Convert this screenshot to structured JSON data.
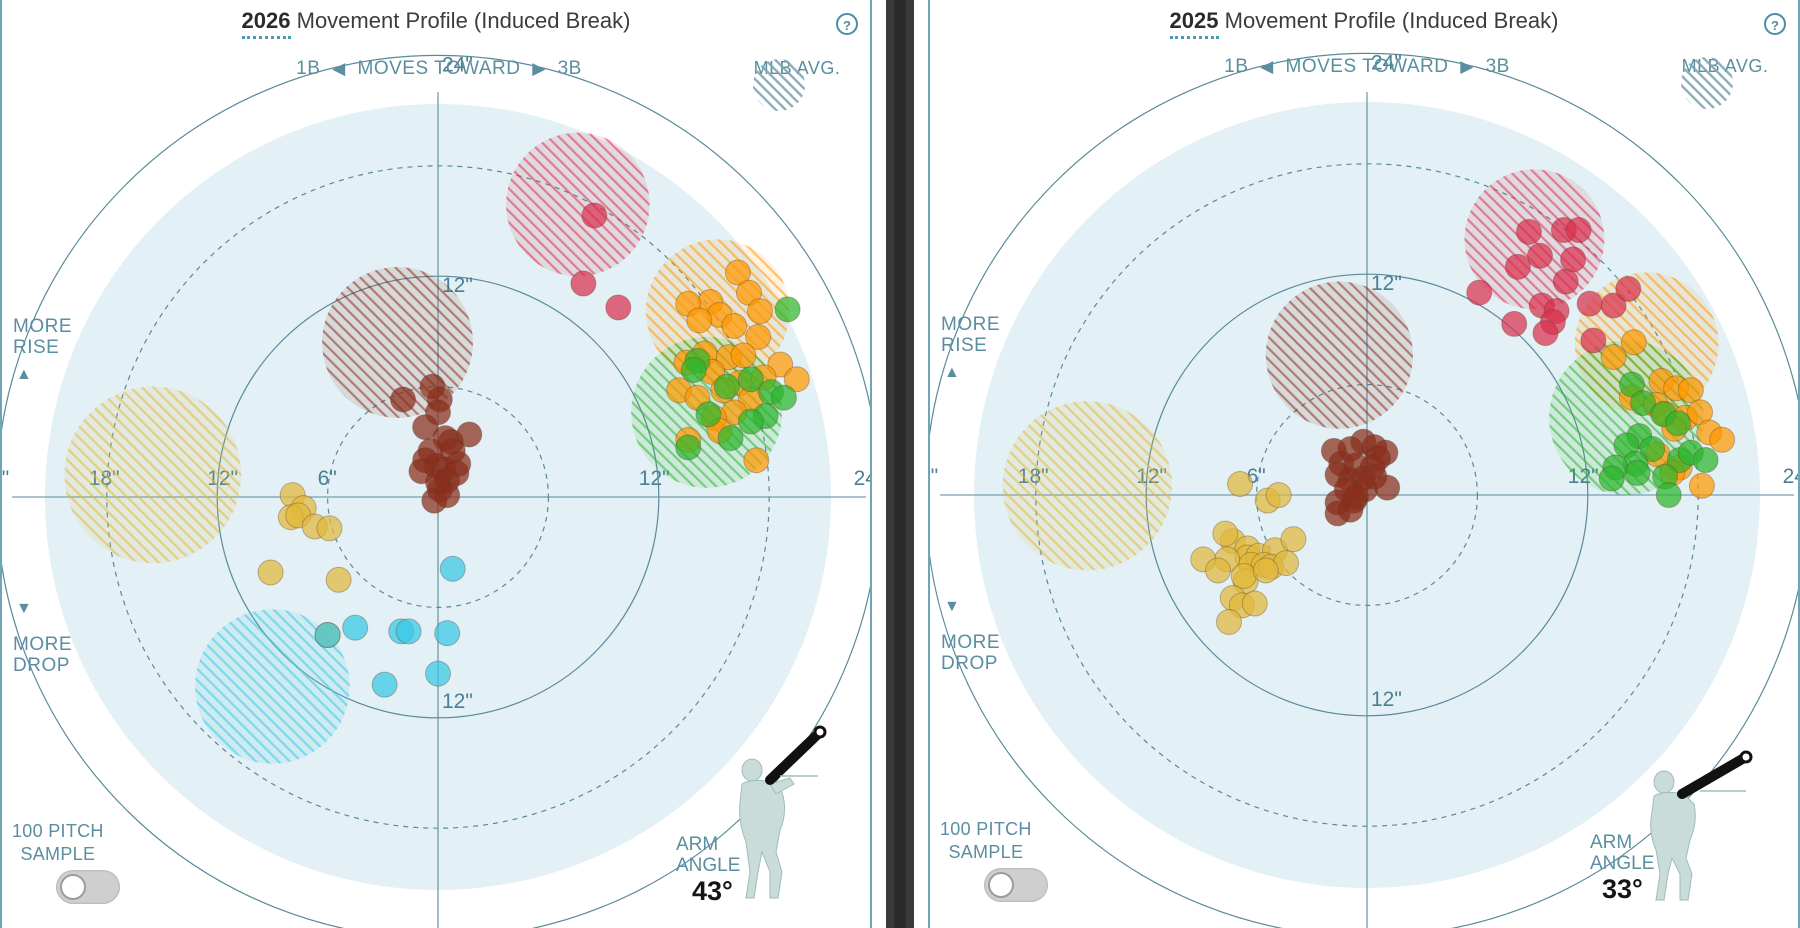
{
  "colors": {
    "field_fill": "#e3f0f5",
    "ring_stroke": "#5a8a9a",
    "axis_label": "#4b7f93",
    "sinker_like_red": "#d9304e",
    "orange": "#ff9800",
    "green": "#2db52d",
    "brown": "#8b2e1c",
    "yellow": "#e1b83a",
    "cyan": "#38c8e4"
  },
  "common": {
    "title_suffix": "Movement Profile (Induced Break)",
    "dir_1b": "1B",
    "dir_mid": "MOVES TOWARD",
    "dir_3b": "3B",
    "mlb_avg": "MLB AVG.",
    "more_rise_1": "MORE",
    "more_rise_2": "RISE",
    "more_drop_1": "MORE",
    "more_drop_2": "DROP",
    "sample_1": "100 PITCH",
    "sample_2": "SAMPLE",
    "arm_1": "ARM",
    "arm_2": "ANGLE",
    "help": "?",
    "up_arrow": "▲",
    "down_arrow": "▼",
    "left_arrow": "◀",
    "right_arrow": "▶",
    "icons": [
      "help-icon",
      "left-arrow-icon",
      "right-arrow-icon",
      "up-arrow-icon",
      "down-arrow-icon",
      "pitcher-icon",
      "toggle"
    ],
    "toggle_state": "off"
  },
  "panels": [
    {
      "year": "2026",
      "arm_angle": "43°"
    },
    {
      "year": "2025",
      "arm_angle": "33°"
    }
  ],
  "chart_data": [
    {
      "type": "scatter",
      "title": "2026 Movement Profile (Induced Break)",
      "xlabel": "1B ◀ MOVES TOWARD ▶ 3B",
      "ylabel": "MORE RISE / MORE DROP",
      "xlim": [
        -24,
        24
      ],
      "ylim": [
        -24,
        24
      ],
      "unit": "inches",
      "grid": "concentric rings at 6, 12, 18, 24 in",
      "ring_labels": [
        "24\"",
        "18\"",
        "12\"",
        "6\"",
        "12\"",
        "24\"",
        "24\"",
        "12\"",
        "12\"",
        "24\""
      ],
      "legend": "MLB AVG. (hatched circles), top-right",
      "mlb_avg": [
        {
          "color": "red",
          "x": 7.6,
          "y": 15.9,
          "r": 3.9
        },
        {
          "color": "orange",
          "x": 15.2,
          "y": 10.1,
          "r": 3.9
        },
        {
          "color": "green",
          "x": 14.6,
          "y": 4.6,
          "r": 4.1
        },
        {
          "color": "brown",
          "x": -2.2,
          "y": 8.4,
          "r": 4.1
        },
        {
          "color": "yellow",
          "x": -15.5,
          "y": 1.2,
          "r": 4.8
        },
        {
          "color": "cyan",
          "x": -9.0,
          "y": -10.3,
          "r": 4.2
        }
      ],
      "series": [
        {
          "color": "red",
          "points": [
            [
              8.5,
              15.3
            ],
            [
              7.9,
              11.6
            ],
            [
              9.8,
              10.3
            ]
          ]
        },
        {
          "color": "orange",
          "points": [
            [
              16.3,
              12.2
            ],
            [
              14.8,
              10.6
            ],
            [
              16.9,
              11.1
            ],
            [
              15.3,
              9.9
            ],
            [
              17.5,
              10.1
            ],
            [
              13.6,
              10.5
            ],
            [
              14.2,
              9.6
            ],
            [
              16.1,
              9.3
            ],
            [
              17.4,
              8.7
            ],
            [
              14.5,
              7.8
            ],
            [
              15.8,
              7.6
            ],
            [
              16.6,
              7.7
            ],
            [
              18.6,
              7.2
            ],
            [
              19.5,
              6.4
            ],
            [
              13.5,
              7.3
            ],
            [
              14.9,
              6.8
            ],
            [
              16.4,
              6.2
            ],
            [
              17.7,
              6.5
            ],
            [
              15.5,
              5.8
            ],
            [
              13.1,
              5.8
            ],
            [
              14.1,
              5.4
            ],
            [
              17.0,
              5.3
            ],
            [
              16.1,
              4.6
            ],
            [
              15.0,
              4.3
            ],
            [
              15.3,
              3.6
            ],
            [
              13.6,
              3.1
            ],
            [
              17.3,
              2.0
            ]
          ]
        },
        {
          "color": "green",
          "points": [
            [
              19.0,
              10.2
            ],
            [
              14.1,
              7.4
            ],
            [
              13.9,
              6.9
            ],
            [
              15.7,
              6.0
            ],
            [
              17.0,
              6.4
            ],
            [
              18.1,
              5.7
            ],
            [
              17.8,
              4.4
            ],
            [
              14.7,
              4.5
            ],
            [
              18.8,
              5.4
            ],
            [
              17.0,
              4.1
            ],
            [
              15.9,
              3.2
            ],
            [
              13.6,
              2.7
            ]
          ]
        },
        {
          "color": "brown",
          "points": [
            [
              -1.9,
              5.3
            ],
            [
              -0.3,
              6.0
            ],
            [
              0.1,
              5.3
            ],
            [
              0.0,
              4.6
            ],
            [
              -0.7,
              3.8
            ],
            [
              0.7,
              3.0
            ],
            [
              0.4,
              3.2
            ],
            [
              1.7,
              3.4
            ],
            [
              -0.4,
              2.5
            ],
            [
              0.8,
              2.5
            ],
            [
              -0.1,
              1.7
            ],
            [
              0.3,
              1.5
            ],
            [
              1.1,
              1.8
            ],
            [
              -0.7,
              2.0
            ],
            [
              0.5,
              0.9
            ],
            [
              1.0,
              1.3
            ],
            [
              -0.9,
              1.4
            ],
            [
              0.0,
              0.8
            ],
            [
              0.1,
              0.4
            ],
            [
              -0.2,
              -0.2
            ],
            [
              0.5,
              0.1
            ]
          ]
        },
        {
          "color": "yellow",
          "points": [
            [
              -7.9,
              0.1
            ],
            [
              -7.3,
              -0.6
            ],
            [
              -8.0,
              -1.1
            ],
            [
              -7.6,
              -1.0
            ],
            [
              -6.7,
              -1.6
            ],
            [
              -5.9,
              -1.7
            ],
            [
              -9.1,
              -4.1
            ],
            [
              -5.4,
              -4.5
            ],
            [
              -6.0,
              -7.5
            ]
          ]
        },
        {
          "color": "cyan",
          "points": [
            [
              0.8,
              -3.9
            ],
            [
              -4.5,
              -7.1
            ],
            [
              -2.0,
              -7.3
            ],
            [
              -1.6,
              -7.3
            ],
            [
              0.5,
              -7.4
            ],
            [
              -2.9,
              -10.2
            ],
            [
              0.0,
              -9.6
            ],
            [
              -6.0,
              -7.5
            ]
          ]
        }
      ],
      "arm_angle": "43°"
    },
    {
      "type": "scatter",
      "title": "2025 Movement Profile (Induced Break)",
      "xlabel": "1B ◀ MOVES TOWARD ▶ 3B",
      "ylabel": "MORE RISE / MORE DROP",
      "xlim": [
        -24,
        24
      ],
      "ylim": [
        -24,
        24
      ],
      "unit": "inches",
      "grid": "concentric rings at 6, 12, 18, 24 in",
      "ring_labels": [
        "24\"",
        "18\"",
        "12\"",
        "6\"",
        "12\"",
        "24\"",
        "24\"",
        "12\"",
        "12\"",
        "24\""
      ],
      "legend": "MLB AVG. (hatched circles), top-right",
      "mlb_avg": [
        {
          "color": "red",
          "x": 9.1,
          "y": 13.9,
          "r": 3.8
        },
        {
          "color": "orange",
          "x": 15.2,
          "y": 8.2,
          "r": 3.9
        },
        {
          "color": "green",
          "x": 14.1,
          "y": 4.2,
          "r": 4.2
        },
        {
          "color": "brown",
          "x": -1.5,
          "y": 7.6,
          "r": 4.0
        },
        {
          "color": "yellow",
          "x": -15.2,
          "y": 0.5,
          "r": 4.6
        }
      ],
      "series": [
        {
          "color": "red",
          "points": [
            [
              8.8,
              14.3
            ],
            [
              10.7,
              14.4
            ],
            [
              11.5,
              14.4
            ],
            [
              9.4,
              13.0
            ],
            [
              11.2,
              12.8
            ],
            [
              8.2,
              12.4
            ],
            [
              10.8,
              11.6
            ],
            [
              13.4,
              10.3
            ],
            [
              12.1,
              10.4
            ],
            [
              14.2,
              11.2
            ],
            [
              6.1,
              11.0
            ],
            [
              9.5,
              10.3
            ],
            [
              10.3,
              10.0
            ],
            [
              10.1,
              9.4
            ],
            [
              9.7,
              8.8
            ],
            [
              8.0,
              9.3
            ],
            [
              12.3,
              8.4
            ]
          ]
        },
        {
          "color": "orange",
          "points": [
            [
              14.5,
              8.3
            ],
            [
              13.4,
              7.5
            ],
            [
              16.0,
              6.2
            ],
            [
              16.8,
              5.8
            ],
            [
              17.6,
              5.7
            ],
            [
              15.7,
              4.9
            ],
            [
              16.2,
              4.4
            ],
            [
              17.3,
              4.2
            ],
            [
              16.7,
              3.6
            ],
            [
              18.1,
              4.5
            ],
            [
              18.6,
              3.4
            ],
            [
              19.3,
              3.0
            ],
            [
              17.0,
              1.5
            ],
            [
              15.8,
              2.2
            ],
            [
              14.4,
              5.3
            ],
            [
              16.6,
              1.2
            ],
            [
              18.2,
              0.5
            ]
          ]
        },
        {
          "color": "green",
          "points": [
            [
              14.4,
              6.0
            ],
            [
              15.0,
              5.0
            ],
            [
              16.1,
              4.4
            ],
            [
              16.9,
              3.9
            ],
            [
              14.8,
              3.2
            ],
            [
              14.1,
              2.7
            ],
            [
              15.5,
              2.5
            ],
            [
              17.0,
              1.9
            ],
            [
              14.6,
              1.7
            ],
            [
              13.5,
              1.5
            ],
            [
              14.7,
              1.2
            ],
            [
              16.2,
              1.0
            ],
            [
              17.6,
              2.3
            ],
            [
              18.4,
              1.9
            ],
            [
              13.3,
              0.9
            ],
            [
              16.4,
              0.0
            ]
          ]
        },
        {
          "color": "brown",
          "points": [
            [
              -1.8,
              2.4
            ],
            [
              -0.9,
              2.5
            ],
            [
              -0.2,
              2.9
            ],
            [
              0.4,
              2.6
            ],
            [
              0.6,
              2.0
            ],
            [
              1.0,
              2.3
            ],
            [
              -1.4,
              1.7
            ],
            [
              -0.6,
              1.6
            ],
            [
              0.3,
              1.5
            ],
            [
              -1.6,
              1.1
            ],
            [
              -0.9,
              0.8
            ],
            [
              -0.2,
              0.9
            ],
            [
              0.4,
              1.0
            ],
            [
              -1.1,
              0.3
            ],
            [
              -0.1,
              0.3
            ],
            [
              1.1,
              0.4
            ],
            [
              -0.7,
              -0.3
            ],
            [
              -1.6,
              -0.4
            ],
            [
              -0.6,
              -0.1
            ],
            [
              -0.9,
              -0.8
            ],
            [
              -1.6,
              -1.0
            ]
          ]
        },
        {
          "color": "yellow",
          "points": [
            [
              -6.9,
              0.6
            ],
            [
              -5.4,
              -0.3
            ],
            [
              -4.8,
              0.0
            ],
            [
              -7.3,
              -2.5
            ],
            [
              -7.7,
              -2.1
            ],
            [
              -6.5,
              -2.9
            ],
            [
              -6.5,
              -3.4
            ],
            [
              -5.9,
              -3.3
            ],
            [
              -5.0,
              -3.0
            ],
            [
              -4.0,
              -2.4
            ],
            [
              -6.3,
              -3.8
            ],
            [
              -5.6,
              -3.8
            ],
            [
              -5.2,
              -3.9
            ],
            [
              -4.4,
              -3.7
            ],
            [
              -6.6,
              -4.7
            ],
            [
              -7.6,
              -3.5
            ],
            [
              -6.7,
              -4.4
            ],
            [
              -8.9,
              -3.5
            ],
            [
              -8.1,
              -4.1
            ],
            [
              -7.3,
              -5.6
            ],
            [
              -6.8,
              -6.0
            ],
            [
              -6.1,
              -5.9
            ],
            [
              -7.5,
              -6.9
            ],
            [
              -5.5,
              -4.1
            ]
          ]
        }
      ],
      "arm_angle": "33°"
    }
  ]
}
